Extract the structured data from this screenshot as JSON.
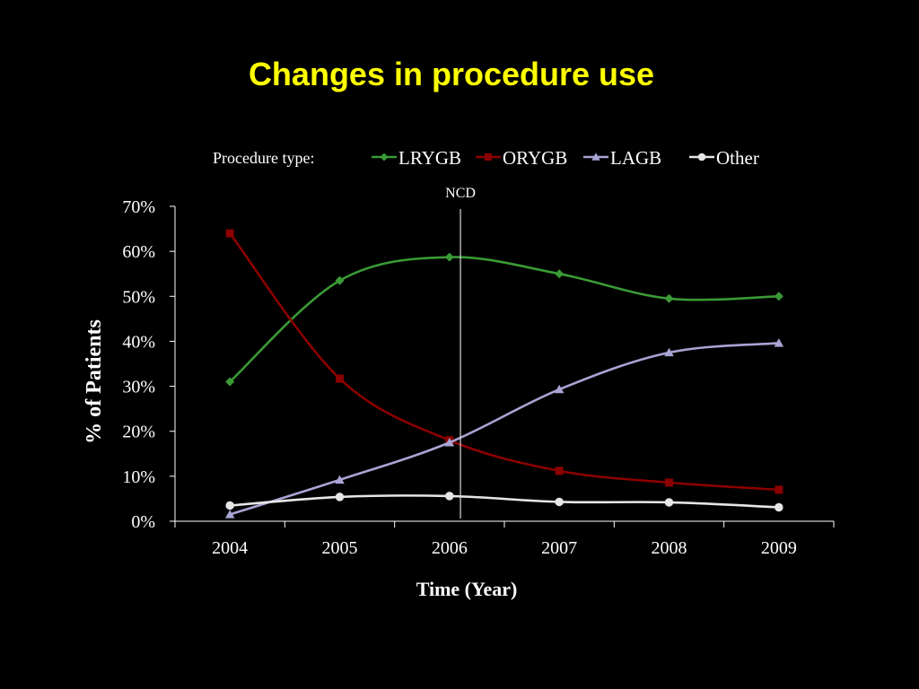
{
  "slide": {
    "title": "Changes in procedure use"
  },
  "colors": {
    "background": "#000000",
    "title": "#FFFF00",
    "axis": "#FFFFFF",
    "ncd_line": "#D9D9D9"
  },
  "chart_data": {
    "type": "line",
    "legend_title": "Procedure type:",
    "legend_position": "top",
    "categories": [
      "2004",
      "2005",
      "2006",
      "2007",
      "2008",
      "2009"
    ],
    "xlabel": "Time (Year)",
    "ylabel": "% of Patients",
    "ylim": [
      0,
      70
    ],
    "yticks": [
      "0%",
      "10%",
      "20%",
      "30%",
      "40%",
      "50%",
      "60%",
      "70%"
    ],
    "grid": false,
    "smooth": true,
    "annotations": [
      {
        "text": "NCD",
        "type": "vertical-line",
        "x": 2006.1
      }
    ],
    "series": [
      {
        "name": "LRYGB",
        "color": "#3A9A35",
        "marker": "diamond",
        "values": [
          31,
          53.5,
          58.7,
          55,
          49.5,
          50
        ]
      },
      {
        "name": "ORYGB",
        "color": "#8B0000",
        "marker": "square",
        "values": [
          64,
          31.7,
          18,
          11.2,
          8.6,
          7
        ]
      },
      {
        "name": "LAGB",
        "color": "#A8A4D4",
        "marker": "triangle",
        "values": [
          1.5,
          9.2,
          17.5,
          29.3,
          37.5,
          39.6
        ]
      },
      {
        "name": "Other",
        "color": "#E6E6E6",
        "marker": "circle",
        "values": [
          3.5,
          5.4,
          5.6,
          4.3,
          4.2,
          3.1
        ]
      }
    ]
  }
}
